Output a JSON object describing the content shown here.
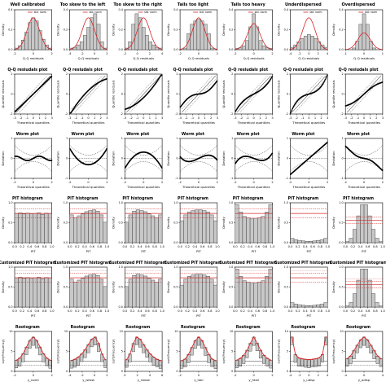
{
  "columns": [
    "Well calibrated",
    "Too skew to the left",
    "Too skew to the right",
    "Tails too light",
    "Tails too heavy",
    "Underdispersed",
    "Overdispersed"
  ],
  "rows": [
    {
      "kind": "hist",
      "titles": [
        "",
        "",
        "",
        "",
        "",
        "",
        ""
      ],
      "xlabel": "Q-Q residuals",
      "ylabel": "Density",
      "legend": "std. norm"
    },
    {
      "kind": "qq",
      "titles": [
        "Q-Q resiudals plot",
        "Q-Q resiudals plot",
        "Q-Q resiudals plot",
        "Q-Q resiudals plot",
        "Q-Q resiudals plot",
        "Q-Q resiudals plot",
        "Q-Q resiudals plot"
      ],
      "xlabel": "Theoretical quantiles",
      "ylabel": "Quantile residuals"
    },
    {
      "kind": "worm",
      "titles": [
        "Worm plot",
        "Worm plot",
        "Worm plot",
        "Worm plot",
        "Worm plot",
        "Worm plot",
        "Worm plot"
      ],
      "xlabel": "Theoretical quantiles",
      "ylabel": "Deviation"
    },
    {
      "kind": "pit",
      "titles": [
        "PIT histogram",
        "PIT histogram",
        "PIT histogram",
        "PIT histogram",
        "PIT histogram",
        "PIT histogram",
        "PIT histogram"
      ],
      "xlabel": "PIT",
      "ylabel": "Density"
    },
    {
      "kind": "cpit",
      "titles": [
        "Customized PIT histogram",
        "Customized PIT histogram",
        "Customized PIT histogram",
        "Customized PIT histogram",
        "Customized PIT histogram",
        "Customized PIT histogram",
        "Customized PIT histogram"
      ],
      "xlabel": "PIT",
      "ylabel": "Density"
    },
    {
      "kind": "root",
      "titles": [
        "Rootogram",
        "Rootogram",
        "Rootogram",
        "Rootogram",
        "Rootogram",
        "Rootogram",
        "Rootogram"
      ],
      "xlabels": [
        "y_norm",
        "y_lskew",
        "y_rskew",
        "y_ltail",
        "y_htail",
        "y_udisp",
        "y_odisp"
      ],
      "ylabel": "sqrt(Frequency)"
    }
  ],
  "chart_data": {
    "type": "grid-of-diagnostic-plots",
    "title": "",
    "models": [
      "Well calibrated",
      "Too skew to the left",
      "Too skew to the right",
      "Tails too light",
      "Tails too heavy",
      "Underdispersed",
      "Overdispersed"
    ],
    "hist_bins": [
      [
        0.02,
        0.05,
        0.12,
        0.22,
        0.34,
        0.4,
        0.36,
        0.24,
        0.13,
        0.06,
        0.02
      ],
      [
        0.02,
        0.03,
        0.06,
        0.1,
        0.18,
        0.28,
        0.4,
        0.45,
        0.32,
        0.1,
        0.02
      ],
      [
        0.02,
        0.1,
        0.32,
        0.45,
        0.4,
        0.28,
        0.18,
        0.1,
        0.06,
        0.03,
        0.02
      ],
      [
        0.0,
        0.02,
        0.2,
        0.32,
        0.36,
        0.38,
        0.36,
        0.32,
        0.2,
        0.02,
        0.0
      ],
      [
        0.02,
        0.03,
        0.06,
        0.14,
        0.35,
        0.55,
        0.35,
        0.14,
        0.06,
        0.03,
        0.02
      ],
      [
        0.03,
        0.06,
        0.1,
        0.14,
        0.17,
        0.19,
        0.17,
        0.14,
        0.1,
        0.06,
        0.03
      ],
      [
        0.0,
        0.0,
        0.04,
        0.2,
        0.6,
        0.85,
        0.6,
        0.2,
        0.04,
        0.0,
        0.0
      ]
    ],
    "hist_xticks": [
      [
        "-2",
        "0",
        "2"
      ],
      [
        "-4",
        "-2",
        "0",
        "2"
      ],
      [
        "-2",
        "0",
        "2",
        "4"
      ],
      [
        "-2",
        "0",
        "2"
      ],
      [
        "-2",
        "0",
        "2"
      ],
      [
        "-4",
        "-2",
        "0",
        "2",
        "4"
      ],
      [
        "-1",
        "0",
        "1"
      ]
    ],
    "qq_xticks": [
      "-3",
      "-2",
      "-1",
      "0",
      "1",
      "2",
      "3"
    ],
    "qq_shapes": [
      "linear",
      "concave",
      "convex",
      "scurve-light",
      "scurve-heavy",
      "steep",
      "flat"
    ],
    "worm_shapes": [
      "flat",
      "u",
      "inverted-u",
      "s-light",
      "s-heavy",
      "steep",
      "flat-tilt"
    ],
    "pit_bins": [
      [
        1.0,
        1.02,
        0.98,
        1.01,
        0.99,
        1.0,
        1.02,
        0.97,
        1.01,
        1.0
      ],
      [
        0.95,
        0.85,
        0.92,
        0.98,
        1.06,
        1.1,
        1.12,
        1.08,
        0.95,
        0.7
      ],
      [
        0.7,
        0.95,
        1.08,
        1.12,
        1.1,
        1.06,
        0.98,
        0.92,
        0.85,
        0.95
      ],
      [
        0.75,
        0.95,
        1.05,
        1.1,
        1.12,
        1.12,
        1.1,
        1.05,
        0.95,
        0.75
      ],
      [
        1.3,
        1.05,
        0.9,
        0.85,
        0.82,
        0.82,
        0.85,
        0.9,
        1.05,
        1.3
      ],
      [
        0.15,
        0.1,
        0.08,
        0.06,
        0.05,
        0.05,
        0.06,
        0.08,
        0.1,
        0.15
      ],
      [
        0.05,
        0.2,
        0.6,
        1.2,
        1.7,
        1.7,
        1.2,
        0.6,
        0.2,
        0.05
      ]
    ],
    "pit_xticks": [
      "0.0",
      "0.2",
      "0.4",
      "0.6",
      "0.8",
      "1.0"
    ],
    "root_xticks": [
      [
        "-2",
        "0",
        "2"
      ],
      [
        "-4",
        "-2",
        "0",
        "2"
      ],
      [
        "0",
        "2",
        "4",
        "6"
      ],
      [
        "-2",
        "0",
        "2"
      ],
      [
        "-2",
        "0",
        "2"
      ],
      [
        "-4",
        "-2",
        "0",
        "2",
        "4"
      ],
      [
        "-4",
        "0",
        "4"
      ]
    ],
    "root_fitted": [
      [
        0.5,
        1.5,
        3.5,
        6.5,
        9.5,
        11,
        9.5,
        6.5,
        3.5,
        1.5,
        0.5
      ],
      [
        0.4,
        1.0,
        2.0,
        3.5,
        5.5,
        8.0,
        10.5,
        11.5,
        8.5,
        3.5,
        0.8
      ],
      [
        0.8,
        3.5,
        8.5,
        11.5,
        10.5,
        8.0,
        5.5,
        3.5,
        2.0,
        1.0,
        0.4
      ],
      [
        0.3,
        1.0,
        3.0,
        6.0,
        9.0,
        10.5,
        9.0,
        6.0,
        3.0,
        1.0,
        0.3
      ],
      [
        0.6,
        1.5,
        3.0,
        5.5,
        9.0,
        12.0,
        9.0,
        5.5,
        3.0,
        1.5,
        0.6
      ],
      [
        14,
        4,
        2,
        1.5,
        1.2,
        1.0,
        1.2,
        1.5,
        2,
        4,
        14
      ],
      [
        0.5,
        1.0,
        2.0,
        3.0,
        4.0,
        4.5,
        4.0,
        3.0,
        2.0,
        1.0,
        0.5
      ]
    ],
    "colors": {
      "bars": "#c8c8c8",
      "bar_edge": "#333333",
      "reference": "#d62728",
      "points": "#000000",
      "ci": "#000000"
    }
  }
}
